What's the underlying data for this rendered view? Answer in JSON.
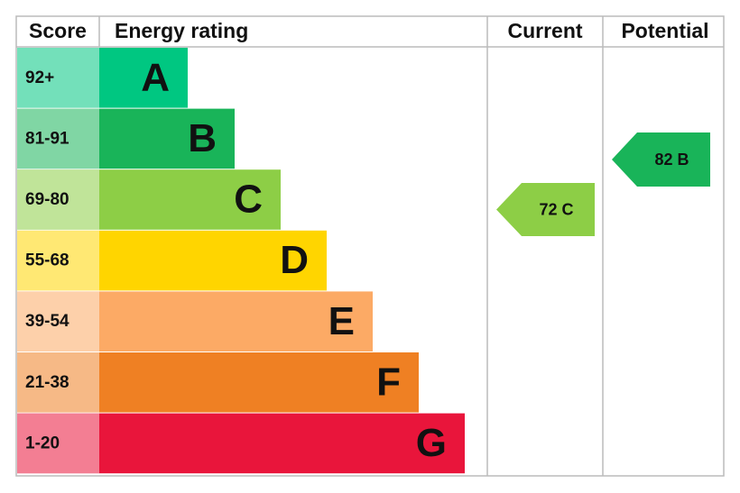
{
  "header": {
    "score": "Score",
    "rating": "Energy rating",
    "current": "Current",
    "potential": "Potential"
  },
  "bands": [
    {
      "score": "92+",
      "letter": "A",
      "color": "#00c781"
    },
    {
      "score": "81-91",
      "letter": "B",
      "color": "#19b459"
    },
    {
      "score": "69-80",
      "letter": "C",
      "color": "#8dce46"
    },
    {
      "score": "55-68",
      "letter": "D",
      "color": "#ffd500"
    },
    {
      "score": "39-54",
      "letter": "E",
      "color": "#fcaa65"
    },
    {
      "score": "21-38",
      "letter": "F",
      "color": "#ef8023"
    },
    {
      "score": "1-20",
      "letter": "G",
      "color": "#e9153b"
    }
  ],
  "current": {
    "label": "72 C",
    "color": "#8dce46"
  },
  "potential": {
    "label": "82 B",
    "color": "#19b459"
  }
}
